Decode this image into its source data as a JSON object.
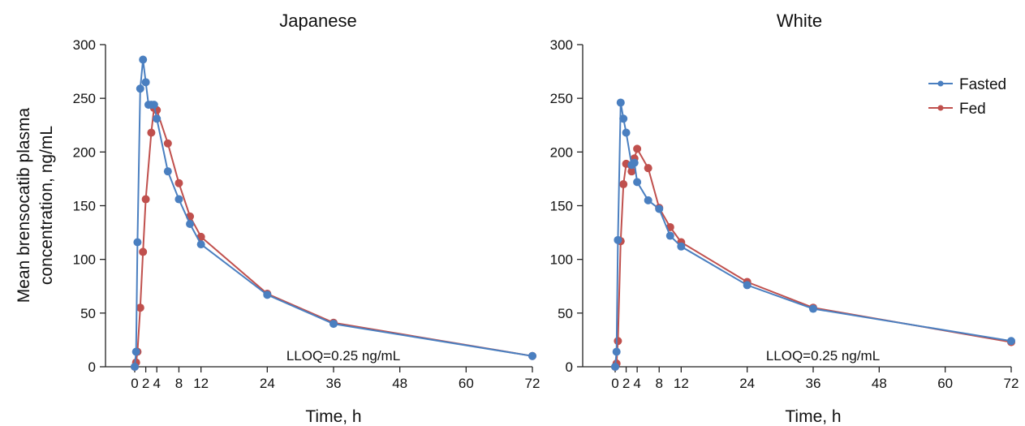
{
  "colors": {
    "fasted": "#4a7fc0",
    "fed": "#c0504d",
    "axis": "#222222"
  },
  "ylabel_line1": "Mean brensocatib plasma",
  "ylabel_line2": "concentration, ng/mL",
  "legend": {
    "fasted": "Fasted",
    "fed": "Fed"
  },
  "chart_data": [
    {
      "type": "line",
      "title": "Japanese",
      "xlabel": "Time, h",
      "ylabel": "Mean brensocatib plasma concentration, ng/mL",
      "annotation": "LLOQ=0.25 ng/mL",
      "xlim": [
        0,
        72
      ],
      "ylim": [
        0,
        300
      ],
      "xticks": [
        0,
        2,
        4,
        8,
        12,
        24,
        36,
        48,
        60,
        72
      ],
      "yticks": [
        0,
        50,
        100,
        150,
        200,
        250,
        300
      ],
      "series": [
        {
          "name": "Fasted",
          "x": [
            0,
            0.25,
            0.5,
            1,
            1.5,
            2,
            2.5,
            3,
            3.5,
            4,
            6,
            8,
            10,
            12,
            24,
            36,
            72
          ],
          "y": [
            0,
            14,
            116,
            259,
            286,
            265,
            244,
            244,
            244,
            231,
            182,
            156,
            133,
            114,
            67,
            40,
            10
          ]
        },
        {
          "name": "Fed",
          "x": [
            0,
            0.25,
            0.5,
            1,
            1.5,
            2,
            3,
            3.5,
            4,
            6,
            8,
            10,
            12,
            24,
            36,
            72
          ],
          "y": [
            0,
            4,
            14,
            55,
            107,
            156,
            218,
            241,
            239,
            208,
            171,
            140,
            121,
            68,
            41,
            10
          ]
        }
      ]
    },
    {
      "type": "line",
      "title": "White",
      "xlabel": "Time, h",
      "ylabel": "",
      "annotation": "LLOQ=0.25 ng/mL",
      "xlim": [
        0,
        72
      ],
      "ylim": [
        0,
        300
      ],
      "xticks": [
        0,
        2,
        4,
        8,
        12,
        24,
        36,
        48,
        60,
        72
      ],
      "yticks": [
        0,
        50,
        100,
        150,
        200,
        250,
        300
      ],
      "legend": "top-right",
      "series": [
        {
          "name": "Fasted",
          "x": [
            0,
            0.25,
            0.5,
            1,
            1.5,
            2,
            3,
            3.5,
            4,
            6,
            8,
            10,
            12,
            24,
            36,
            72
          ],
          "y": [
            0,
            14,
            118,
            246,
            231,
            218,
            188,
            190,
            172,
            155,
            147,
            122,
            112,
            76,
            54,
            24
          ]
        },
        {
          "name": "Fed",
          "x": [
            0,
            0.25,
            0.5,
            1,
            1.5,
            2,
            3,
            3.5,
            4,
            6,
            8,
            10,
            12,
            24,
            36,
            72
          ],
          "y": [
            0,
            3,
            24,
            117,
            170,
            189,
            182,
            194,
            203,
            185,
            148,
            130,
            116,
            79,
            55,
            23
          ]
        }
      ]
    }
  ]
}
